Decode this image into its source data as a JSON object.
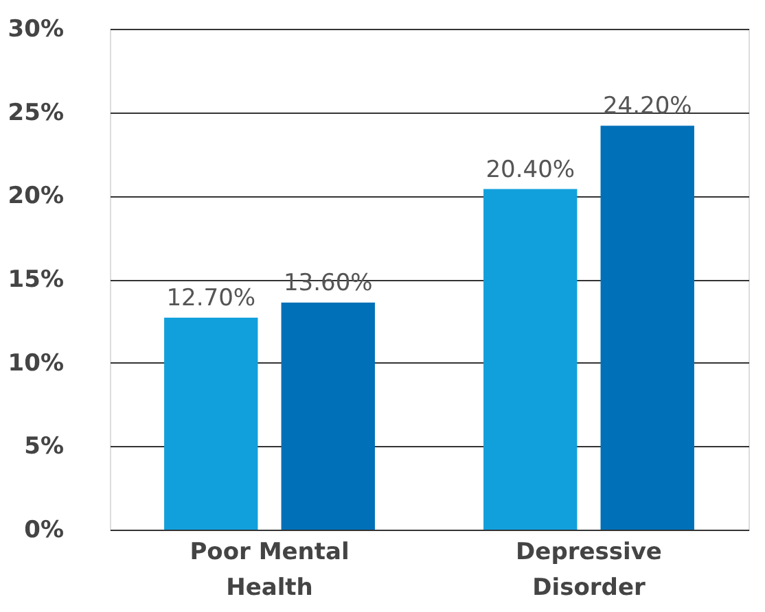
{
  "chart_data": {
    "type": "bar",
    "categories": [
      "Poor Mental Health",
      "Depressive Disorder"
    ],
    "series": [
      {
        "color": "#12a0dc",
        "values": [
          12.7,
          20.4
        ],
        "value_labels": [
          "12.70%",
          "20.40%"
        ]
      },
      {
        "color": "#0070b8",
        "values": [
          13.6,
          24.2
        ],
        "value_labels": [
          "13.60%",
          "24.20%"
        ]
      }
    ],
    "ylim": [
      0,
      30
    ],
    "yticks": [
      {
        "value": 0,
        "label": "0%"
      },
      {
        "value": 5,
        "label": "5%"
      },
      {
        "value": 10,
        "label": "10%"
      },
      {
        "value": 15,
        "label": "15%"
      },
      {
        "value": 20,
        "label": "20%"
      },
      {
        "value": 25,
        "label": "25%"
      },
      {
        "value": 30,
        "label": "30%"
      }
    ],
    "grid": "y",
    "legend": false
  }
}
